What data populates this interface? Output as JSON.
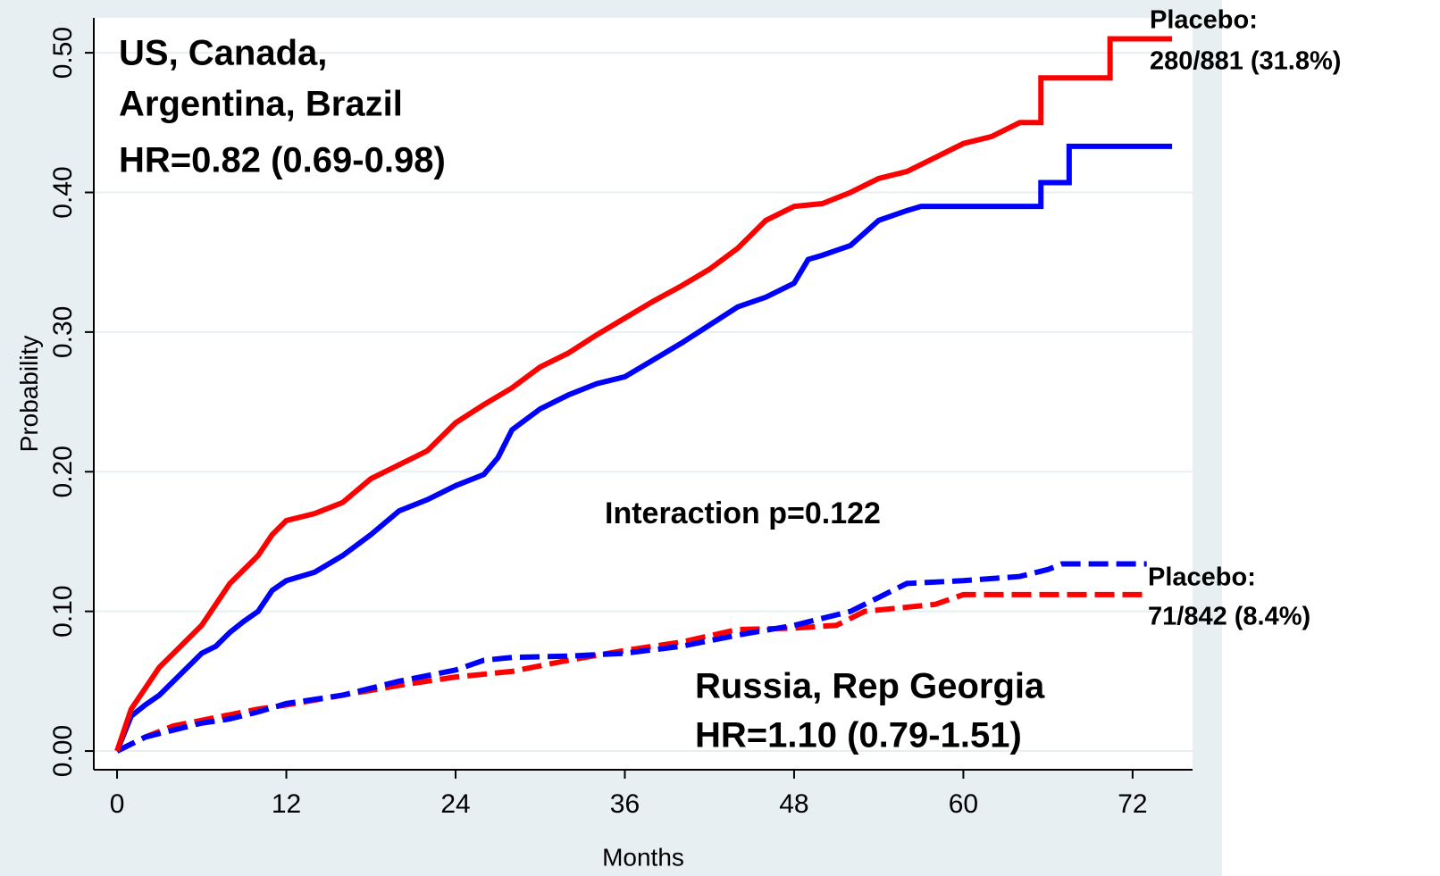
{
  "chart_data": {
    "type": "line",
    "y_label": "Probability",
    "x_label": "Months",
    "xlim": [
      -1.65,
      76.25
    ],
    "ylim": [
      -0.0134,
      0.525
    ],
    "xticks": [
      0,
      12,
      24,
      36,
      48,
      60,
      72
    ],
    "yticks": [
      {
        "value": 0,
        "label": "0.00"
      },
      {
        "value": 0.1,
        "label": "0.10"
      },
      {
        "value": 0.2,
        "label": "0.20"
      },
      {
        "value": 0.3,
        "label": "0.30"
      },
      {
        "value": 0.4,
        "label": "0.40"
      },
      {
        "value": 0.5,
        "label": "0.50"
      }
    ],
    "grid": true,
    "series": [
      {
        "color": "#ff0000",
        "style": "solid",
        "x": [
          0,
          1,
          2,
          3,
          4,
          5,
          6,
          7,
          8,
          9,
          10,
          11,
          12,
          14,
          16,
          18,
          20,
          22,
          24,
          26,
          28,
          30,
          32,
          34,
          36,
          38,
          40,
          42,
          44,
          46,
          48,
          50,
          52,
          54,
          56,
          58,
          60,
          62,
          64,
          65.5,
          65.5,
          70.4,
          70.4,
          74.8
        ],
        "values": [
          0,
          0.03,
          0.045,
          0.06,
          0.07,
          0.08,
          0.09,
          0.105,
          0.12,
          0.13,
          0.14,
          0.155,
          0.165,
          0.17,
          0.178,
          0.195,
          0.205,
          0.215,
          0.235,
          0.248,
          0.26,
          0.275,
          0.285,
          0.298,
          0.31,
          0.322,
          0.333,
          0.345,
          0.36,
          0.38,
          0.39,
          0.392,
          0.4,
          0.41,
          0.415,
          0.425,
          0.435,
          0.44,
          0.45,
          0.45,
          0.482,
          0.482,
          0.51,
          0.51
        ]
      },
      {
        "color": "#0000ff",
        "style": "solid",
        "x": [
          0,
          1,
          2,
          3,
          4,
          5,
          6,
          7,
          8,
          9,
          10,
          11,
          12,
          14,
          16,
          18,
          20,
          22,
          24,
          26,
          27,
          28,
          30,
          32,
          34,
          36,
          38,
          40,
          42,
          44,
          46,
          48,
          49,
          50,
          52,
          54,
          56,
          57,
          65.5,
          65.5,
          67.5,
          67.5,
          74.8
        ],
        "values": [
          0,
          0.025,
          0.033,
          0.04,
          0.05,
          0.06,
          0.07,
          0.075,
          0.085,
          0.093,
          0.1,
          0.115,
          0.122,
          0.128,
          0.14,
          0.155,
          0.172,
          0.18,
          0.19,
          0.198,
          0.21,
          0.23,
          0.245,
          0.255,
          0.263,
          0.268,
          0.28,
          0.292,
          0.305,
          0.318,
          0.325,
          0.335,
          0.352,
          0.355,
          0.362,
          0.38,
          0.387,
          0.39,
          0.39,
          0.407,
          0.407,
          0.433,
          0.433
        ]
      },
      {
        "color": "#ff0000",
        "style": "dashed",
        "x": [
          0,
          2,
          4,
          6,
          8,
          10,
          12,
          16,
          20,
          24,
          28,
          32,
          36,
          40,
          44,
          48,
          51,
          53,
          56,
          58,
          60,
          73
        ],
        "values": [
          0,
          0.01,
          0.018,
          0.022,
          0.026,
          0.03,
          0.033,
          0.04,
          0.047,
          0.053,
          0.057,
          0.065,
          0.072,
          0.078,
          0.087,
          0.088,
          0.09,
          0.1,
          0.103,
          0.105,
          0.112,
          0.112
        ]
      },
      {
        "color": "#0000ff",
        "style": "dashed",
        "x": [
          0,
          2,
          4,
          6,
          8,
          10,
          12,
          16,
          20,
          24,
          26,
          28,
          32,
          36,
          40,
          44,
          48,
          50,
          52,
          54,
          56,
          60,
          64,
          66,
          67,
          73
        ],
        "values": [
          0,
          0.01,
          0.015,
          0.02,
          0.023,
          0.028,
          0.034,
          0.04,
          0.05,
          0.058,
          0.065,
          0.067,
          0.068,
          0.07,
          0.075,
          0.083,
          0.09,
          0.095,
          0.1,
          0.11,
          0.12,
          0.122,
          0.125,
          0.13,
          0.134,
          0.134
        ]
      }
    ],
    "annotations": [
      "US, Canada,",
      "Argentina, Brazil",
      "HR=0.82 (0.69-0.98)",
      "Interaction p=0.122",
      "Placebo:",
      "280/881 (31.8%)",
      "Placebo:",
      "71/842 (8.4%)",
      "Russia, Rep Georgia",
      "HR=1.10 (0.79-1.51)"
    ]
  }
}
